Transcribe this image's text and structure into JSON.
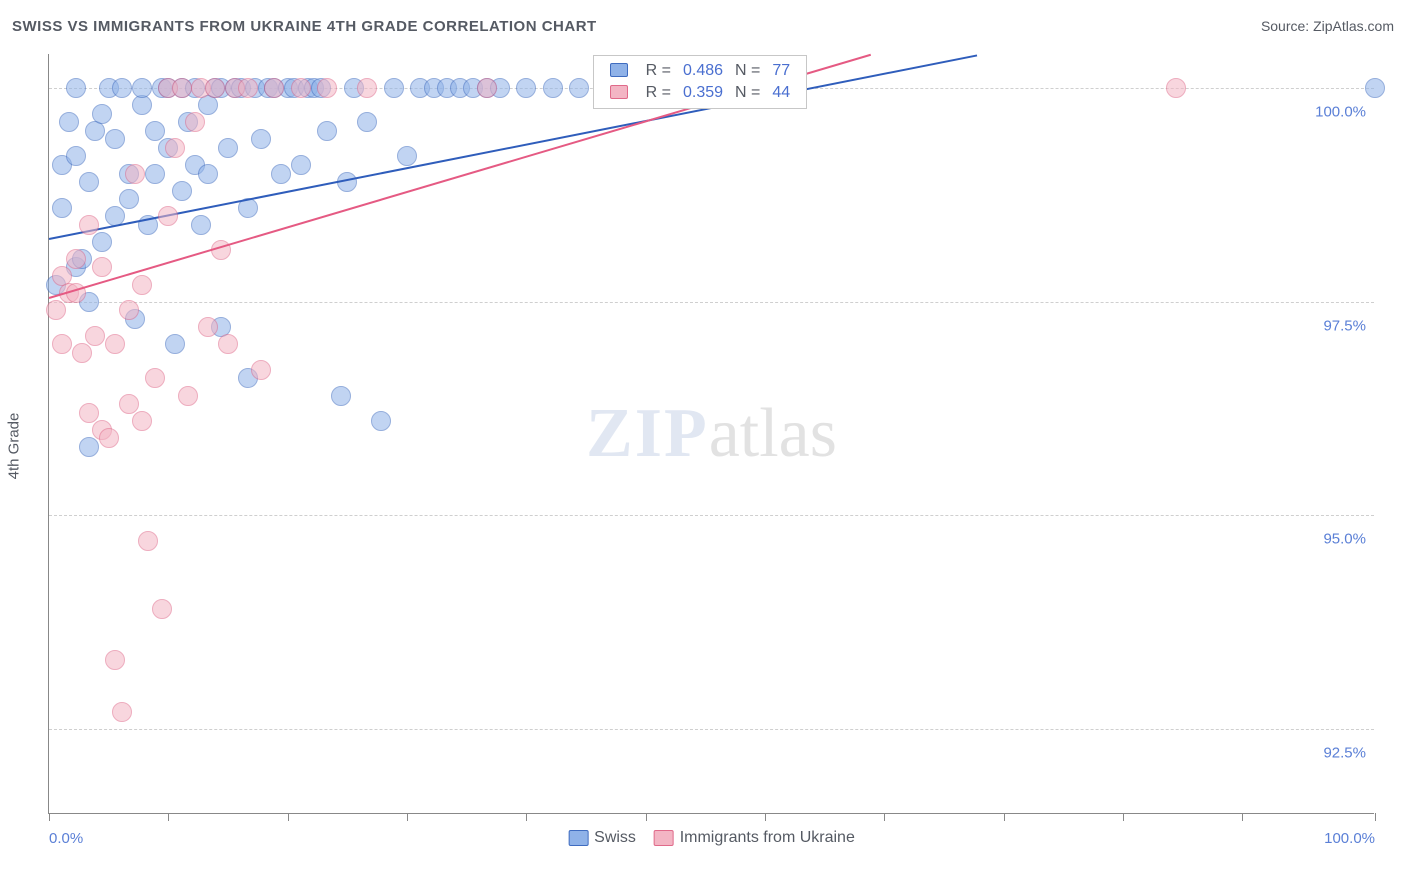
{
  "header": {
    "title": "SWISS VS IMMIGRANTS FROM UKRAINE 4TH GRADE CORRELATION CHART",
    "source_prefix": "Source: ",
    "source_name": "ZipAtlas.com"
  },
  "chart": {
    "type": "scatter",
    "y_axis_label": "4th Grade",
    "xlim": [
      0,
      100
    ],
    "ylim": [
      91.5,
      100.4
    ],
    "x_ticks": [
      0,
      9,
      18,
      27,
      36,
      45,
      54,
      63,
      72,
      81,
      90,
      100
    ],
    "x_tick_labels": {
      "0": "0.0%",
      "100": "100.0%"
    },
    "y_gridlines": [
      92.5,
      95.0,
      97.5,
      100.0
    ],
    "y_tick_labels": {
      "92.5": "92.5%",
      "95.0": "95.0%",
      "97.5": "97.5%",
      "100.0": "100.0%"
    },
    "background_color": "#ffffff",
    "grid_color": "#cfcfcf",
    "axis_color": "#888888",
    "tick_label_color": "#5a7fd6",
    "marker_radius": 10,
    "marker_opacity": 0.55,
    "series": [
      {
        "name": "Swiss",
        "fill": "#8fb2e8",
        "stroke": "#3f6cc0",
        "trend": {
          "x1": 0,
          "y1": 98.25,
          "x2": 70,
          "y2": 100.4,
          "color": "#2f5dbb",
          "width": 2
        },
        "R": 0.486,
        "N": 77,
        "points": [
          [
            0.5,
            97.7
          ],
          [
            1,
            98.6
          ],
          [
            1,
            99.1
          ],
          [
            1.5,
            99.6
          ],
          [
            2,
            97.9
          ],
          [
            2,
            99.2
          ],
          [
            2,
            100
          ],
          [
            2.5,
            98.0
          ],
          [
            3,
            97.5
          ],
          [
            3,
            98.9
          ],
          [
            3,
            95.8
          ],
          [
            3.5,
            99.5
          ],
          [
            4,
            99.7
          ],
          [
            4,
            98.2
          ],
          [
            4.5,
            100
          ],
          [
            5,
            99.4
          ],
          [
            5,
            98.5
          ],
          [
            5.5,
            100
          ],
          [
            6,
            99.0
          ],
          [
            6,
            98.7
          ],
          [
            6.5,
            97.3
          ],
          [
            7,
            99.8
          ],
          [
            7,
            100
          ],
          [
            7.5,
            98.4
          ],
          [
            8,
            99.5
          ],
          [
            8,
            99.0
          ],
          [
            8.5,
            100
          ],
          [
            9,
            100
          ],
          [
            9,
            99.3
          ],
          [
            9.5,
            97.0
          ],
          [
            10,
            98.8
          ],
          [
            10,
            100
          ],
          [
            10.5,
            99.6
          ],
          [
            11,
            99.1
          ],
          [
            11,
            100
          ],
          [
            11.5,
            98.4
          ],
          [
            12,
            99.8
          ],
          [
            12,
            99.0
          ],
          [
            12.5,
            100
          ],
          [
            13,
            100
          ],
          [
            13,
            97.2
          ],
          [
            13.5,
            99.3
          ],
          [
            14,
            100
          ],
          [
            14.5,
            100
          ],
          [
            15,
            98.6
          ],
          [
            15,
            96.6
          ],
          [
            15.5,
            100
          ],
          [
            16,
            99.4
          ],
          [
            16.5,
            100
          ],
          [
            17,
            100
          ],
          [
            17.5,
            99.0
          ],
          [
            18,
            100
          ],
          [
            18.5,
            100
          ],
          [
            19,
            99.1
          ],
          [
            19.5,
            100
          ],
          [
            20,
            100
          ],
          [
            20.5,
            100
          ],
          [
            21,
            99.5
          ],
          [
            22,
            96.4
          ],
          [
            22.5,
            98.9
          ],
          [
            23,
            100
          ],
          [
            24,
            99.6
          ],
          [
            25,
            96.1
          ],
          [
            26,
            100
          ],
          [
            27,
            99.2
          ],
          [
            28,
            100
          ],
          [
            29,
            100
          ],
          [
            30,
            100
          ],
          [
            31,
            100
          ],
          [
            32,
            100
          ],
          [
            33,
            100
          ],
          [
            34,
            100
          ],
          [
            36,
            100
          ],
          [
            38,
            100
          ],
          [
            40,
            100
          ],
          [
            42,
            100
          ],
          [
            100,
            100
          ]
        ]
      },
      {
        "name": "Immigrants from Ukraine",
        "fill": "#f3b5c4",
        "stroke": "#e06a8a",
        "trend": {
          "x1": 0,
          "y1": 97.55,
          "x2": 62,
          "y2": 100.4,
          "color": "#e55a83",
          "width": 2
        },
        "R": 0.359,
        "N": 44,
        "points": [
          [
            0.5,
            97.4
          ],
          [
            1,
            97.8
          ],
          [
            1,
            97.0
          ],
          [
            1.5,
            97.6
          ],
          [
            2,
            98.0
          ],
          [
            2,
            97.6
          ],
          [
            2.5,
            96.9
          ],
          [
            3,
            98.4
          ],
          [
            3,
            96.2
          ],
          [
            3.5,
            97.1
          ],
          [
            4,
            97.9
          ],
          [
            4,
            96.0
          ],
          [
            4.5,
            95.9
          ],
          [
            5,
            93.3
          ],
          [
            5,
            97.0
          ],
          [
            5.5,
            92.7
          ],
          [
            6,
            96.3
          ],
          [
            6,
            97.4
          ],
          [
            6.5,
            99.0
          ],
          [
            7,
            97.7
          ],
          [
            7,
            96.1
          ],
          [
            7.5,
            94.7
          ],
          [
            8,
            96.6
          ],
          [
            8.5,
            93.9
          ],
          [
            9,
            100
          ],
          [
            9,
            98.5
          ],
          [
            9.5,
            99.3
          ],
          [
            10,
            100
          ],
          [
            10.5,
            96.4
          ],
          [
            11,
            99.6
          ],
          [
            11.5,
            100
          ],
          [
            12,
            97.2
          ],
          [
            12.5,
            100
          ],
          [
            13,
            98.1
          ],
          [
            13.5,
            97.0
          ],
          [
            14,
            100
          ],
          [
            15,
            100
          ],
          [
            16,
            96.7
          ],
          [
            17,
            100
          ],
          [
            19,
            100
          ],
          [
            21,
            100
          ],
          [
            24,
            100
          ],
          [
            33,
            100
          ],
          [
            85,
            100
          ]
        ]
      }
    ],
    "legend_box": {
      "x": 41,
      "y_top": 0.5,
      "r_label": "R =",
      "n_label": "N ="
    },
    "bottom_legend": {
      "items": [
        "Swiss",
        "Immigrants from Ukraine"
      ]
    },
    "watermark": {
      "part1": "ZIP",
      "part2": "atlas"
    }
  }
}
